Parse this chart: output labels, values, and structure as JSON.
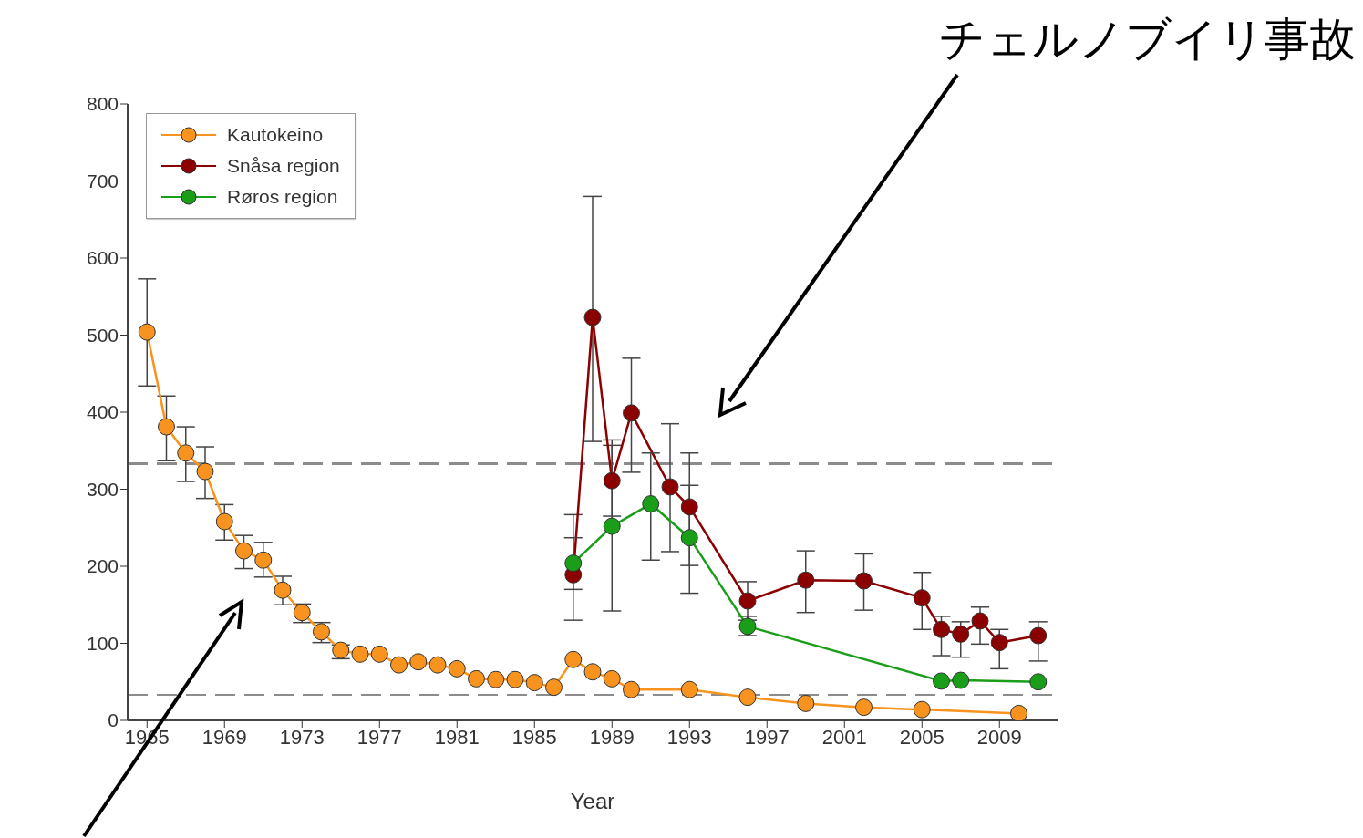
{
  "chart_data": {
    "type": "line",
    "xlabel": "Year",
    "annotations": [
      "チェルノブイリ事故"
    ],
    "xlim": [
      1964,
      2012
    ],
    "xticks": [
      1965,
      1969,
      1973,
      1977,
      1981,
      1985,
      1989,
      1993,
      1997,
      2001,
      2005,
      2009
    ],
    "ylim": [
      0,
      800
    ],
    "yticks": [
      0,
      100,
      200,
      300,
      400,
      500,
      600,
      700,
      800
    ],
    "legend": "top left",
    "marker": "circle",
    "line_style": "solid",
    "ref_lines": [
      {
        "axis": "y",
        "value": 333,
        "color": "#8c8c8c",
        "line_style": "dashed"
      },
      {
        "axis": "y",
        "value": 33,
        "color": "#8c8c8c",
        "line_style": "dashed"
      }
    ],
    "series": [
      {
        "name": "Kautokeino",
        "color": "#f7931e",
        "x": [
          1965,
          1966,
          1967,
          1968,
          1969,
          1970,
          1971,
          1972,
          1973,
          1974,
          1975,
          1976,
          1977,
          1978,
          1979,
          1980,
          1981,
          1982,
          1983,
          1984,
          1985,
          1986,
          1987,
          1988,
          1989,
          1990,
          1993,
          1996,
          1999,
          2002,
          2005,
          2010
        ],
        "values": [
          504,
          381,
          347,
          323,
          258,
          220,
          208,
          169,
          140,
          115,
          91,
          86,
          86,
          72,
          76,
          72,
          67,
          54,
          53,
          53,
          49,
          43,
          79,
          63,
          54,
          40,
          40,
          30,
          22,
          17,
          14,
          9
        ],
        "errors": [
          [
            434,
            573
          ],
          [
            337,
            421
          ],
          [
            310,
            381
          ],
          [
            288,
            355
          ],
          [
            234,
            280
          ],
          [
            197,
            240
          ],
          [
            186,
            231
          ],
          [
            150,
            187
          ],
          [
            127,
            151
          ],
          [
            101,
            127
          ],
          [
            80,
            98
          ],
          null,
          null,
          null,
          null,
          null,
          null,
          null,
          null,
          null,
          null,
          null,
          null,
          null,
          null,
          null,
          null,
          null,
          null,
          null,
          null,
          null
        ]
      },
      {
        "name": "Snåsa region",
        "color": "#8b0000",
        "x": [
          1987,
          1988,
          1989,
          1990,
          1991,
          1992,
          1993,
          1996,
          1999,
          2002,
          2005,
          2006,
          2007,
          2008,
          2009,
          2011
        ],
        "values": [
          189,
          523,
          311,
          399,
          null,
          303,
          277,
          155,
          182,
          181,
          159,
          118,
          112,
          129,
          101,
          110
        ],
        "errors": [
          [
            130,
            267
          ],
          [
            362,
            680
          ],
          [
            265,
            357
          ],
          [
            322,
            470
          ],
          null,
          [
            219,
            385
          ],
          [
            201,
            347
          ],
          [
            130,
            180
          ],
          [
            140,
            220
          ],
          [
            143,
            216
          ],
          [
            118,
            192
          ],
          [
            84,
            135
          ],
          [
            82,
            128
          ],
          [
            99,
            147
          ],
          [
            67,
            118
          ],
          [
            77,
            128
          ]
        ]
      },
      {
        "name": "Røros region",
        "color": "#1a9e1a",
        "x": [
          1987,
          1989,
          1991,
          1993,
          1996,
          2006,
          2007,
          2011
        ],
        "values": [
          204,
          252,
          281,
          237,
          122,
          51,
          52,
          50
        ],
        "errors": [
          [
            170,
            237
          ],
          [
            142,
            364
          ],
          [
            208,
            347
          ],
          [
            165,
            305
          ],
          [
            110,
            135
          ],
          null,
          null,
          null
        ]
      }
    ]
  }
}
